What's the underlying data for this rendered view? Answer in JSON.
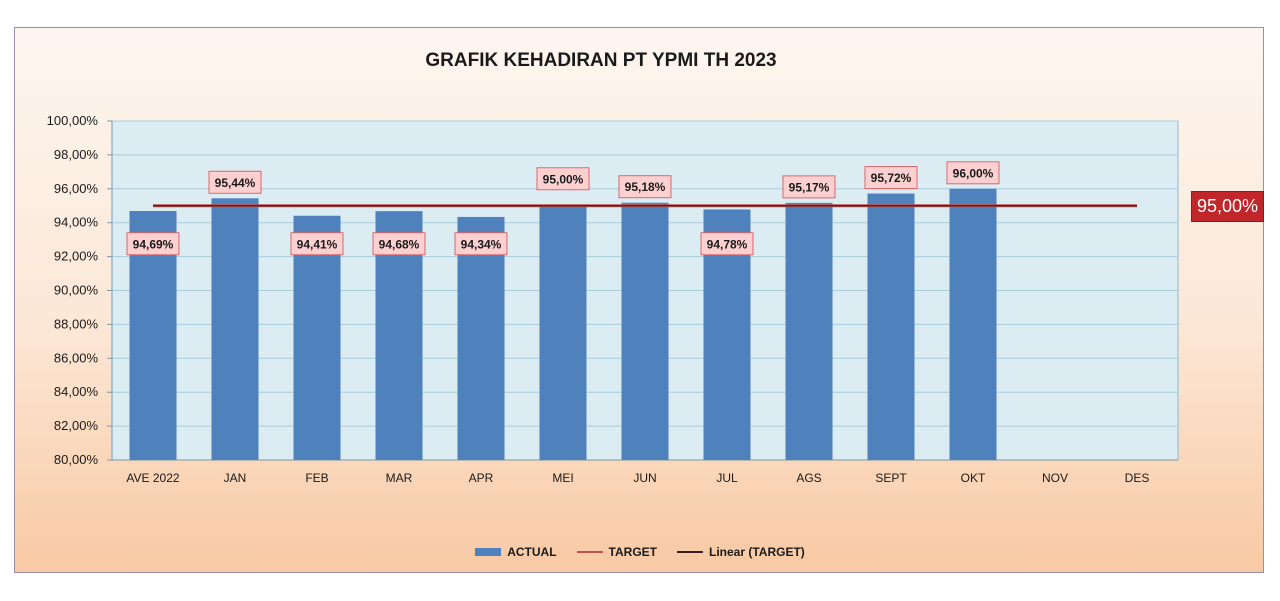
{
  "chart_data": {
    "type": "bar",
    "title": "GRAFIK KEHADIRAN PT YPMI TH 2023",
    "categories": [
      "AVE 2022",
      "JAN",
      "FEB",
      "MAR",
      "APR",
      "MEI",
      "JUN",
      "JUL",
      "AGS",
      "SEPT",
      "OKT",
      "NOV",
      "DES"
    ],
    "series": [
      {
        "name": "ACTUAL",
        "values": [
          94.69,
          95.44,
          94.41,
          94.68,
          94.34,
          95.0,
          95.18,
          94.78,
          95.17,
          95.72,
          96.0,
          null,
          null
        ],
        "data_labels": [
          "94,69%",
          "95,44%",
          "94,41%",
          "94,68%",
          "94,34%",
          "95,00%",
          "95,18%",
          "94,78%",
          "95,17%",
          "95,72%",
          "96,00%",
          "",
          ""
        ]
      },
      {
        "name": "TARGET",
        "values": [
          95,
          95,
          95,
          95,
          95,
          95,
          95,
          95,
          95,
          95,
          95,
          95,
          95
        ]
      },
      {
        "name": "Linear (TARGET)",
        "values": [
          95,
          95,
          95,
          95,
          95,
          95,
          95,
          95,
          95,
          95,
          95,
          95,
          95
        ]
      }
    ],
    "y_ticks": [
      "80,00%",
      "82,00%",
      "84,00%",
      "86,00%",
      "88,00%",
      "90,00%",
      "92,00%",
      "94,00%",
      "96,00%",
      "98,00%",
      "100,00%"
    ],
    "ylim": [
      80,
      100
    ],
    "target_label": "95,00%",
    "colors": {
      "bar": "#4f81bd",
      "target": "#c0504d",
      "trend": "#3d1d1d",
      "plot_bg": "#dcecf3",
      "label_bg": "#fcd0d0",
      "label_border": "#d9696b",
      "callout": "#c0262a"
    },
    "grid": true,
    "legend_position": "bottom"
  },
  "legend": {
    "actual": "ACTUAL",
    "target": "TARGET",
    "linear": "Linear (TARGET)"
  }
}
